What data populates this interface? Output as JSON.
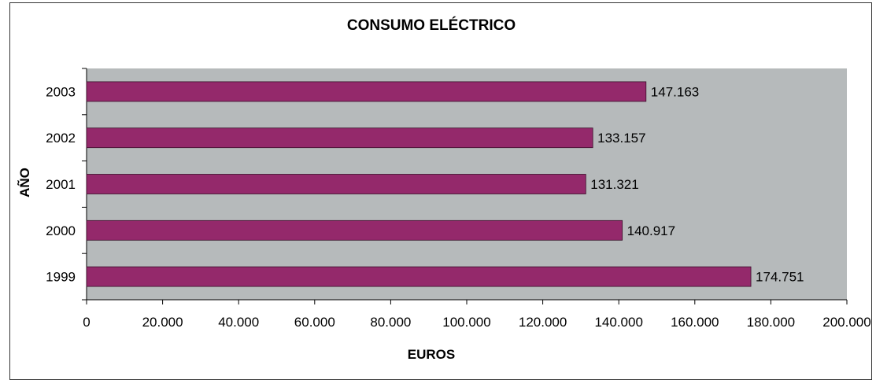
{
  "chart_data": {
    "type": "bar",
    "orientation": "horizontal",
    "title": "CONSUMO ELÉCTRICO",
    "xlabel": "EUROS",
    "ylabel": "AÑO",
    "categories": [
      "1999",
      "2000",
      "2001",
      "2002",
      "2003"
    ],
    "values": [
      174751,
      140917,
      131321,
      133157,
      147163
    ],
    "value_labels": [
      "174.751",
      "140.917",
      "131.321",
      "133.157",
      "147.163"
    ],
    "xlim": [
      0,
      200000
    ],
    "xticks": [
      0,
      20000,
      40000,
      60000,
      80000,
      100000,
      120000,
      140000,
      160000,
      180000,
      200000
    ],
    "xtick_labels": [
      "0",
      "20.000",
      "40.000",
      "60.000",
      "80.000",
      "100.000",
      "120.000",
      "140.000",
      "160.000",
      "180.000",
      "200.000"
    ],
    "grid": false,
    "legend": "none",
    "colors": {
      "bar": "#94296b",
      "plot_background": "#b6babb"
    }
  }
}
